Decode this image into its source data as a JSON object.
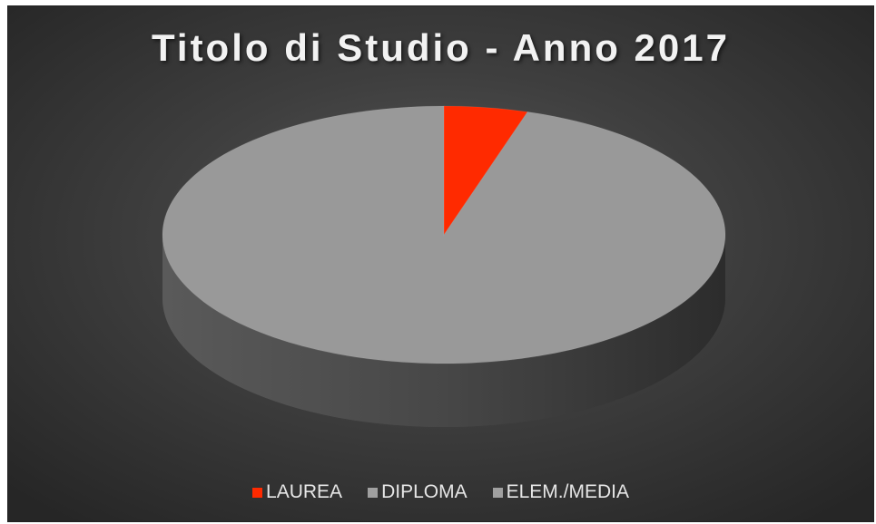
{
  "chart_data": {
    "type": "pie",
    "title": "Titolo di Studio - Anno 2017",
    "categories": [
      "LAUREA",
      "DIPLOMA",
      "ELEM./MEDIA"
    ],
    "values": [
      4.8,
      0,
      95.2
    ],
    "colors": [
      "#ff2a00",
      "#808080",
      "#8f8f8f"
    ],
    "legend_position": "bottom",
    "style": "3d"
  }
}
